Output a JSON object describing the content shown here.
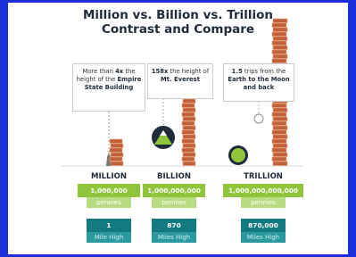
{
  "header": {
    "title_lines": [
      "Million vs. Billion vs. Trillion",
      "Contrast and Compare"
    ]
  },
  "columns": [
    {
      "caption": [
        {
          "text": "More than ",
          "bold": false
        },
        {
          "text": "4x",
          "bold": true
        },
        {
          "text": " the height of the ",
          "bold": false
        },
        {
          "text": "Empire State Building",
          "bold": true
        }
      ],
      "label": "MILLION",
      "amount": "1,000,000",
      "amount_unit": "pennies",
      "height": "1",
      "height_unit": "Mile High"
    },
    {
      "caption": [
        {
          "text": "158x",
          "bold": true
        },
        {
          "text": " the height of ",
          "bold": false
        },
        {
          "text": "Mt. Everest",
          "bold": true
        }
      ],
      "label": "BILLION",
      "amount": "1,000,000,000",
      "amount_unit": "pennies",
      "height": "870",
      "height_unit": "Miles High"
    },
    {
      "caption": [
        {
          "text": "1.5",
          "bold": true
        },
        {
          "text": " trips from the ",
          "bold": false
        },
        {
          "text": "Earth to the Moon",
          "bold": true
        },
        {
          "text": " and back",
          "bold": true
        }
      ],
      "label": "TRILLION",
      "amount": "1,000,000,000,000",
      "amount_unit": "pennies",
      "height": "870,000",
      "height_unit": "Miles High"
    }
  ]
}
